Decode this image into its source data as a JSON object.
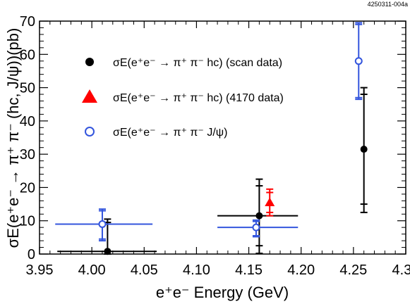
{
  "figure_id": "4250311-004a",
  "chart_data": {
    "type": "scatter",
    "xlabel": "e⁺e⁻ Energy (GeV)",
    "ylabel": "σE(e⁺e⁻ → π⁺ π⁻ (hc, J/ψ))(pb)",
    "xlim": [
      3.95,
      4.3
    ],
    "ylim": [
      0,
      70
    ],
    "xticks": [
      "3.95",
      "4.00",
      "4.05",
      "4.10",
      "4.15",
      "4.20",
      "4.25",
      "4.30"
    ],
    "yticks": [
      "0",
      "10",
      "20",
      "30",
      "40",
      "50",
      "60",
      "70"
    ],
    "legend_position": "top-left",
    "series": [
      {
        "name": "σE(e⁺e⁻ → π⁺ π⁻ hc) (scan data)",
        "marker": "filled-circle",
        "color": "#000000",
        "points": [
          {
            "x": 4.015,
            "y": 0.8,
            "xerr": [
              4.015,
              4.015
            ],
            "stat": [
              0.0,
              10.5
            ],
            "syst": [
              0.0,
              9.5
            ],
            "band": [
              3.967,
              4.062
            ]
          },
          {
            "x": 4.16,
            "y": 11.5,
            "xerr": [
              4.16,
              4.16
            ],
            "stat": [
              0.2,
              22.5
            ],
            "syst": [
              2.5,
              20.5
            ],
            "band": [
              4.12,
              4.197
            ]
          },
          {
            "x": 4.26,
            "y": 31.5,
            "xerr": [
              4.26,
              4.26
            ],
            "stat": [
              12.5,
              50.0
            ],
            "syst": [
              15.0,
              48.0
            ],
            "band": null
          }
        ]
      },
      {
        "name": "σE(e⁺e⁻ → π⁺ π⁻ hc) (4170 data)",
        "marker": "filled-triangle",
        "color": "#ff0000",
        "points": [
          {
            "x": 4.17,
            "y": 15.5,
            "stat": [
              11.5,
              19.5
            ],
            "syst": [
              12.5,
              18.5
            ],
            "band": null
          }
        ]
      },
      {
        "name": "σE(e⁺e⁻ → π⁺ π⁻ J/ψ)",
        "marker": "open-circle",
        "color": "#3355dd",
        "points": [
          {
            "x": 4.01,
            "y": 9.0,
            "stat": [
              4.0,
              13.5
            ],
            "syst": [
              4.5,
              13.0
            ],
            "band": [
              3.965,
              4.058
            ]
          },
          {
            "x": 4.157,
            "y": 8.0,
            "stat": [
              5.2,
              10.2
            ],
            "syst": [
              5.5,
              9.8
            ],
            "band": [
              4.12,
              4.197
            ]
          },
          {
            "x": 4.255,
            "y": 58.0,
            "stat": [
              46.5,
              69.5
            ],
            "syst": [
              47.0,
              69.0
            ],
            "band": null
          }
        ]
      }
    ]
  }
}
